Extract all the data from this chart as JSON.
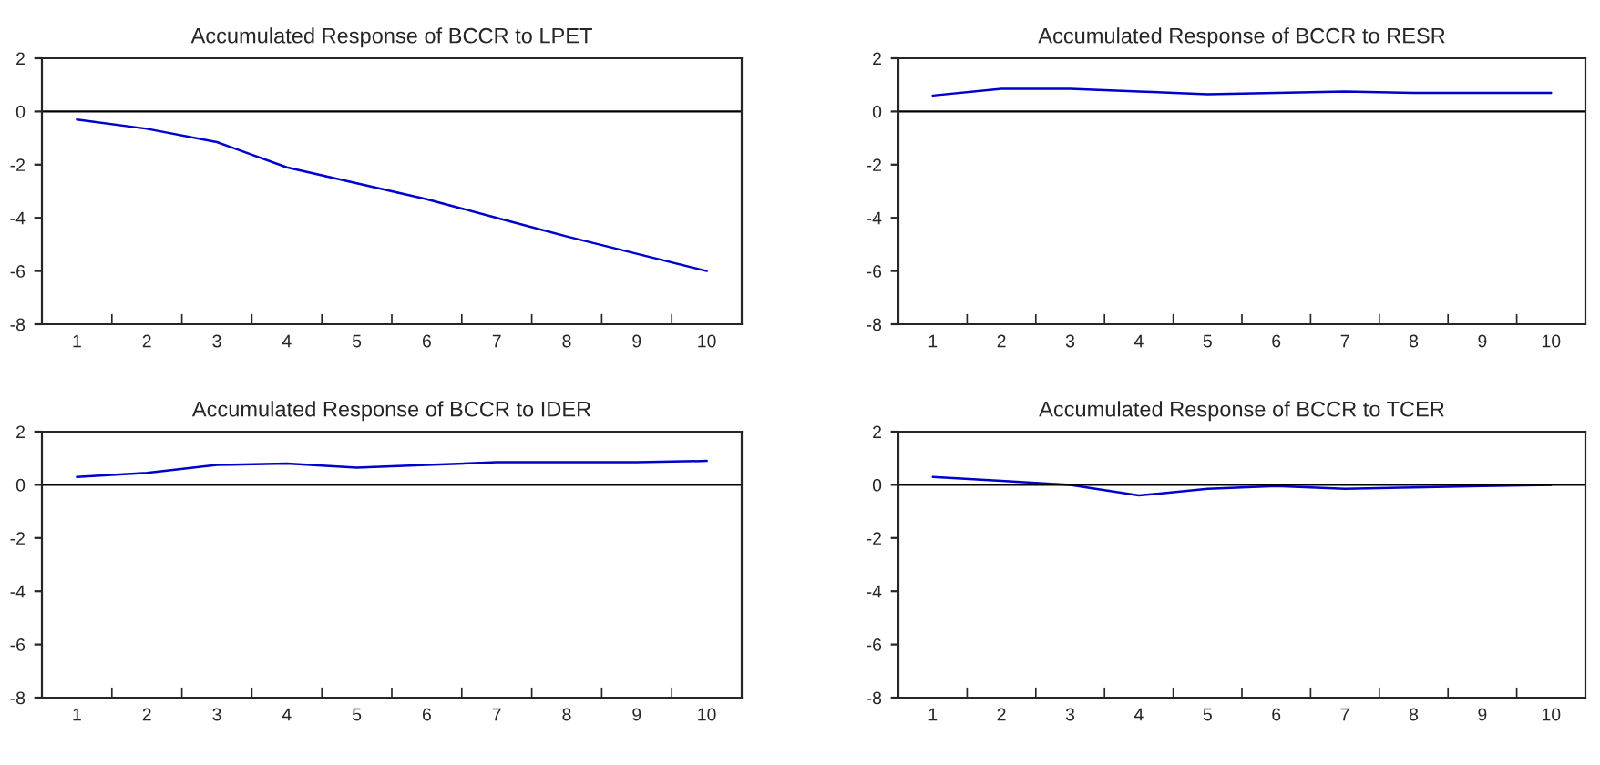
{
  "chart_data": [
    {
      "type": "line",
      "title": "Accumulated Response of BCCR to LPET",
      "categories": [
        "1",
        "2",
        "3",
        "4",
        "5",
        "6",
        "7",
        "8",
        "9",
        "10"
      ],
      "series": [
        {
          "color": "#0000cc",
          "values": [
            -0.3,
            -0.65,
            -1.15,
            -2.1,
            -2.7,
            -3.3,
            -4.0,
            -4.7,
            -5.35,
            -6.0
          ]
        }
      ],
      "ylim": [
        -8,
        2
      ],
      "yticks": [
        -8,
        -6,
        -4,
        -2,
        0,
        2
      ],
      "ref_lines": [
        {
          "axis": "y",
          "value": 0,
          "color": "#000000"
        }
      ],
      "grid": false,
      "legend": false
    },
    {
      "type": "line",
      "title": "Accumulated Response of BCCR to RESR",
      "categories": [
        "1",
        "2",
        "3",
        "4",
        "5",
        "6",
        "7",
        "8",
        "9",
        "10"
      ],
      "series": [
        {
          "color": "#0000cc",
          "values": [
            0.6,
            0.85,
            0.85,
            0.75,
            0.65,
            0.7,
            0.75,
            0.7,
            0.7,
            0.7
          ]
        }
      ],
      "ylim": [
        -8,
        2
      ],
      "yticks": [
        -8,
        -6,
        -4,
        -2,
        0,
        2
      ],
      "ref_lines": [
        {
          "axis": "y",
          "value": 0,
          "color": "#000000"
        }
      ],
      "grid": false,
      "legend": false
    },
    {
      "type": "line",
      "title": "Accumulated Response of BCCR to IDER",
      "categories": [
        "1",
        "2",
        "3",
        "4",
        "5",
        "6",
        "7",
        "8",
        "9",
        "10"
      ],
      "series": [
        {
          "color": "#0000cc",
          "values": [
            0.3,
            0.45,
            0.75,
            0.8,
            0.65,
            0.75,
            0.85,
            0.85,
            0.85,
            0.9
          ]
        }
      ],
      "ylim": [
        -8,
        2
      ],
      "yticks": [
        -8,
        -6,
        -4,
        -2,
        0,
        2
      ],
      "ref_lines": [
        {
          "axis": "y",
          "value": 0,
          "color": "#000000"
        }
      ],
      "grid": false,
      "legend": false
    },
    {
      "type": "line",
      "title": "Accumulated Response of BCCR to TCER",
      "categories": [
        "1",
        "2",
        "3",
        "4",
        "5",
        "6",
        "7",
        "8",
        "9",
        "10"
      ],
      "series": [
        {
          "color": "#0000cc",
          "values": [
            0.3,
            0.15,
            0.0,
            -0.4,
            -0.15,
            -0.05,
            -0.15,
            -0.1,
            -0.05,
            0.0
          ]
        }
      ],
      "ylim": [
        -8,
        2
      ],
      "yticks": [
        -8,
        -6,
        -4,
        -2,
        0,
        2
      ],
      "ref_lines": [
        {
          "axis": "y",
          "value": 0,
          "color": "#000000"
        }
      ],
      "grid": false,
      "legend": false
    }
  ]
}
